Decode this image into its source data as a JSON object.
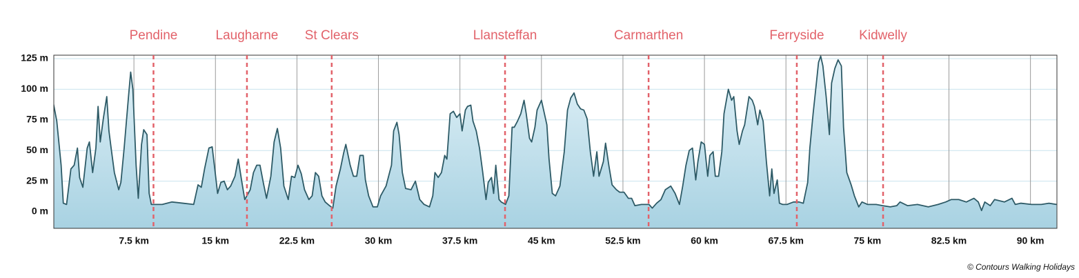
{
  "chart_data": {
    "type": "area",
    "credit": "© Contours Walking Holidays",
    "line_color": "#2d5a66",
    "fill_color": "#bfe1ed",
    "marker_color": "#e2626a",
    "xlim": [
      0,
      92.5
    ],
    "ylim": [
      -13.5,
      127.8
    ],
    "xticks": [
      {
        "value": 7.5,
        "label": "7.5 km"
      },
      {
        "value": 15,
        "label": "15 km"
      },
      {
        "value": 22.5,
        "label": "22.5 km"
      },
      {
        "value": 30,
        "label": "30 km"
      },
      {
        "value": 37.5,
        "label": "37.5 km"
      },
      {
        "value": 45,
        "label": "45 km"
      },
      {
        "value": 52.5,
        "label": "52.5 km"
      },
      {
        "value": 60,
        "label": "60 km"
      },
      {
        "value": 67.5,
        "label": "67.5 km"
      },
      {
        "value": 75,
        "label": "75 km"
      },
      {
        "value": 82.5,
        "label": "82.5 km"
      },
      {
        "value": 90,
        "label": "90 km"
      }
    ],
    "yticks": [
      {
        "value": 0,
        "label": "0 m"
      },
      {
        "value": 25,
        "label": "25 m"
      },
      {
        "value": 50,
        "label": "50 m"
      },
      {
        "value": 75,
        "label": "75 m"
      },
      {
        "value": 100,
        "label": "100 m"
      },
      {
        "value": 125,
        "label": "125 m"
      }
    ],
    "markers": [
      {
        "name": "Pendine",
        "x": 9.3
      },
      {
        "name": "Laugharne",
        "x": 17.9
      },
      {
        "name": "St Clears",
        "x": 25.7
      },
      {
        "name": "Llansteffan",
        "x": 41.65
      },
      {
        "name": "Carmarthen",
        "x": 54.86
      },
      {
        "name": "Ferryside",
        "x": 68.5
      },
      {
        "name": "Kidwelly",
        "x": 76.44
      }
    ],
    "x": [
      0.1,
      0.4,
      0.8,
      1.0,
      1.3,
      1.7,
      2.0,
      2.3,
      2.5,
      2.8,
      3.2,
      3.4,
      3.7,
      4.0,
      4.2,
      4.4,
      4.7,
      5.0,
      5.2,
      5.4,
      5.7,
      6.1,
      6.3,
      6.6,
      7.0,
      7.2,
      7.4,
      7.7,
      7.9,
      8.2,
      8.4,
      8.7,
      8.9,
      9.1,
      10.1,
      11.0,
      12.0,
      13.0,
      13.4,
      13.7,
      14.0,
      14.4,
      14.7,
      14.9,
      15.2,
      15.5,
      15.8,
      16.1,
      16.4,
      16.8,
      17.1,
      17.4,
      17.7,
      18.2,
      18.5,
      18.8,
      19.1,
      19.4,
      19.7,
      20.1,
      20.4,
      20.7,
      21.0,
      21.3,
      21.7,
      22.0,
      22.3,
      22.6,
      22.9,
      23.2,
      23.6,
      23.9,
      24.2,
      24.5,
      24.8,
      25.1,
      25.5,
      25.8,
      26.1,
      26.5,
      26.8,
      27.0,
      27.4,
      27.7,
      28.0,
      28.3,
      28.6,
      28.8,
      29.1,
      29.5,
      29.9,
      30.2,
      30.7,
      31.2,
      31.4,
      31.7,
      31.9,
      32.2,
      32.5,
      33.0,
      33.4,
      33.8,
      34.2,
      34.7,
      35.0,
      35.2,
      35.5,
      35.8,
      36.1,
      36.3,
      36.6,
      36.9,
      37.2,
      37.5,
      37.7,
      38.0,
      38.2,
      38.5,
      38.7,
      39.0,
      39.3,
      39.6,
      39.9,
      40.1,
      40.4,
      40.6,
      40.8,
      41.1,
      41.3,
      41.7,
      42.0,
      42.3,
      42.5,
      42.8,
      43.1,
      43.4,
      43.6,
      43.9,
      44.1,
      44.4,
      44.6,
      45.0,
      45.2,
      45.5,
      45.7,
      46.0,
      46.3,
      46.7,
      47.1,
      47.4,
      47.7,
      48.0,
      48.3,
      48.6,
      48.9,
      49.2,
      49.5,
      49.8,
      50.1,
      50.3,
      50.7,
      50.9,
      51.2,
      51.5,
      51.9,
      52.2,
      52.6,
      53.0,
      53.3,
      53.6,
      54.2,
      54.9,
      55.2,
      55.6,
      56.0,
      56.4,
      56.9,
      57.3,
      57.7,
      58.0,
      58.3,
      58.6,
      58.9,
      59.2,
      59.4,
      59.7,
      60.0,
      60.3,
      60.5,
      60.8,
      61.0,
      61.3,
      61.6,
      61.8,
      62.2,
      62.5,
      62.7,
      63.0,
      63.2,
      63.5,
      63.7,
      64.1,
      64.4,
      64.6,
      64.9,
      65.1,
      65.4,
      65.7,
      66.0,
      66.2,
      66.4,
      66.7,
      66.9,
      67.2,
      67.6,
      67.9,
      68.2,
      68.7,
      69.1,
      69.5,
      69.7,
      70.0,
      70.3,
      70.5,
      70.7,
      70.9,
      71.2,
      71.5,
      71.7,
      72.0,
      72.3,
      72.6,
      72.8,
      73.1,
      73.5,
      73.8,
      74.2,
      74.5,
      75.0,
      75.8,
      76.4,
      77.1,
      77.7,
      78.0,
      78.7,
      79.6,
      80.6,
      81.5,
      82.2,
      82.7,
      83.4,
      84.1,
      84.8,
      85.2,
      85.5,
      85.8,
      86.3,
      86.7,
      87.6,
      88.3,
      88.6,
      89.1,
      90.1,
      91.0,
      91.7,
      92.4
    ],
    "values": [
      88,
      74,
      38,
      7,
      6,
      35,
      38,
      52,
      28,
      20,
      52,
      57,
      32,
      52,
      86,
      57,
      77,
      94,
      66,
      52,
      32,
      18,
      24,
      52,
      94,
      114,
      100,
      38,
      11,
      55,
      67,
      63,
      15,
      6,
      6,
      8,
      7,
      6,
      22,
      20,
      35,
      52,
      53,
      38,
      15,
      24,
      25,
      18,
      21,
      29,
      43,
      26,
      10,
      18,
      32,
      38,
      38,
      24,
      11,
      29,
      57,
      68,
      52,
      21,
      10,
      29,
      28,
      38,
      31,
      18,
      10,
      13,
      32,
      29,
      13,
      8,
      5,
      3,
      21,
      35,
      48,
      55,
      38,
      29,
      29,
      46,
      46,
      26,
      13,
      4,
      4,
      13,
      21,
      38,
      66,
      73,
      63,
      32,
      19,
      18,
      25,
      10,
      6,
      4,
      13,
      32,
      28,
      32,
      46,
      43,
      80,
      82,
      77,
      80,
      66,
      83,
      86,
      87,
      74,
      66,
      52,
      32,
      10,
      24,
      28,
      15,
      38,
      10,
      8,
      6,
      13,
      69,
      69,
      74,
      80,
      91,
      80,
      60,
      57,
      69,
      83,
      91,
      83,
      71,
      43,
      15,
      13,
      21,
      49,
      83,
      93,
      97,
      88,
      84,
      83,
      76,
      49,
      29,
      49,
      29,
      41,
      56,
      38,
      22,
      18,
      16,
      16,
      11,
      11,
      5,
      6,
      6,
      3,
      7,
      10,
      18,
      21,
      15,
      6,
      21,
      38,
      50,
      52,
      26,
      41,
      57,
      55,
      29,
      46,
      49,
      29,
      29,
      49,
      80,
      100,
      91,
      94,
      66,
      55,
      66,
      71,
      94,
      91,
      86,
      71,
      83,
      74,
      41,
      13,
      35,
      15,
      26,
      7,
      6,
      6,
      7,
      8,
      8,
      7,
      24,
      52,
      80,
      105,
      122,
      127,
      119,
      94,
      63,
      105,
      117,
      124,
      119,
      69,
      32,
      22,
      13,
      4,
      8,
      6,
      6,
      5,
      4,
      5,
      8,
      5,
      6,
      4,
      6,
      8,
      10,
      10,
      8,
      11,
      8,
      1,
      8,
      5,
      10,
      8,
      11,
      6,
      7,
      6,
      6,
      7,
      6
    ]
  }
}
